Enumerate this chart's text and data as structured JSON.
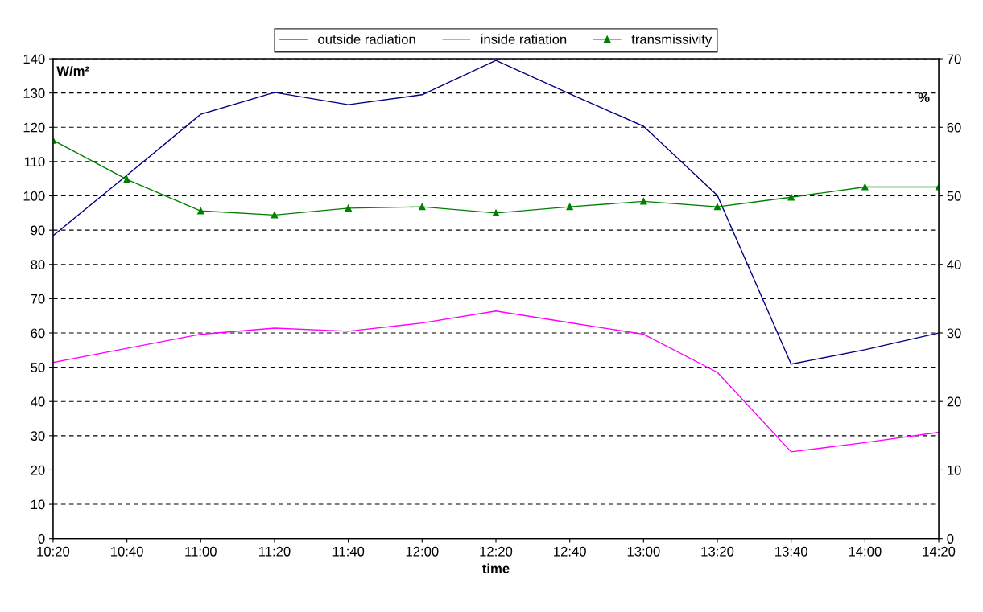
{
  "chart_data": {
    "type": "line",
    "xlabel": "time",
    "ylabel": "W/m²",
    "y2label": "%",
    "categories": [
      "10:20",
      "10:40",
      "11:00",
      "11:20",
      "11:40",
      "12:00",
      "12:20",
      "12:40",
      "13:00",
      "13:20",
      "13:40",
      "14:00",
      "14:20"
    ],
    "series": [
      {
        "name": "outside radiation",
        "color": "#000080",
        "marker": "none",
        "values": [
          88.4,
          106,
          123.8,
          130.2,
          126.6,
          129.5,
          139.5,
          129.8,
          120.3,
          100.1,
          50.9,
          55.1,
          60
        ]
      },
      {
        "name": "inside ratiation",
        "color": "#ff00ff",
        "marker": "none",
        "values": [
          51.4,
          55.5,
          59.6,
          61.4,
          60.5,
          62.9,
          66.4,
          63,
          59.6,
          48.5,
          25.3,
          28,
          31
        ]
      },
      {
        "name": "transmissivity",
        "color": "#008000",
        "marker": "triangle",
        "axis": "y2",
        "values": [
          58.1,
          52.4,
          47.8,
          47.2,
          48.2,
          48.4,
          47.5,
          48.4,
          49.2,
          48.4,
          49.8,
          51.3,
          51.3
        ]
      }
    ],
    "ylim": [
      0,
      140
    ],
    "yticks": [
      0,
      10,
      20,
      30,
      40,
      50,
      60,
      70,
      80,
      90,
      100,
      110,
      120,
      130,
      140
    ],
    "y2lim": [
      0,
      70
    ],
    "y2ticks": [
      0,
      10,
      20,
      30,
      40,
      50,
      60,
      70
    ],
    "grid": "y",
    "legend": "top",
    "line_style": "solid"
  }
}
